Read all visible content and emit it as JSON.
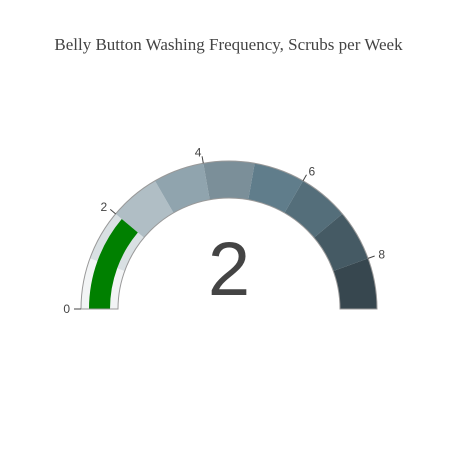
{
  "chart_data": {
    "type": "gauge",
    "title": "Belly Button Washing Frequency, Scrubs per Week",
    "value": 2,
    "value_text": "2",
    "range": [
      0,
      9
    ],
    "tick_values": [
      0,
      2,
      4,
      6,
      8
    ],
    "tick_labels": [
      "0",
      "2",
      "4",
      "6",
      "8"
    ],
    "steps": [
      {
        "range": [
          0,
          1
        ],
        "color": "#f2f4f5"
      },
      {
        "range": [
          1,
          2
        ],
        "color": "#d9e0e3"
      },
      {
        "range": [
          2,
          3
        ],
        "color": "#b0bec5"
      },
      {
        "range": [
          3,
          4
        ],
        "color": "#90a4ae"
      },
      {
        "range": [
          4,
          5
        ],
        "color": "#7b8f99"
      },
      {
        "range": [
          5,
          6
        ],
        "color": "#607d8b"
      },
      {
        "range": [
          6,
          7
        ],
        "color": "#546e7a"
      },
      {
        "range": [
          7,
          8
        ],
        "color": "#455a64"
      },
      {
        "range": [
          8,
          9
        ],
        "color": "#37474f"
      }
    ],
    "bar_color": "#008000",
    "outline_color": "#999999"
  }
}
